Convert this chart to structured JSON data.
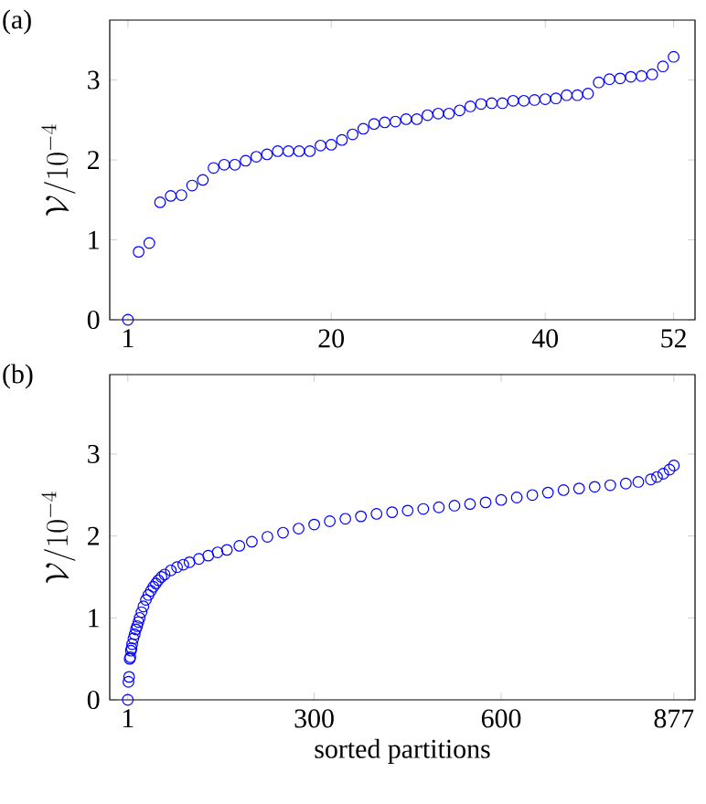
{
  "chart_data": [
    {
      "type": "scatter",
      "title": "(a)",
      "ylabel": "\\mathcal{V}/10^{-4}",
      "marker": "circle",
      "color": "#0000ff",
      "x": [
        1,
        2,
        3,
        4,
        5,
        6,
        7,
        8,
        9,
        10,
        11,
        12,
        13,
        14,
        15,
        16,
        17,
        18,
        19,
        20,
        21,
        22,
        23,
        24,
        25,
        26,
        27,
        28,
        29,
        30,
        31,
        32,
        33,
        34,
        35,
        36,
        37,
        38,
        39,
        40,
        41,
        42,
        43,
        44,
        45,
        46,
        47,
        48,
        49,
        50,
        51,
        52
      ],
      "values": [
        0,
        0.85,
        0.96,
        1.47,
        1.55,
        1.56,
        1.68,
        1.75,
        1.9,
        1.94,
        1.94,
        1.99,
        2.04,
        2.07,
        2.11,
        2.11,
        2.11,
        2.11,
        2.18,
        2.19,
        2.25,
        2.32,
        2.39,
        2.45,
        2.47,
        2.48,
        2.51,
        2.51,
        2.56,
        2.58,
        2.58,
        2.62,
        2.67,
        2.7,
        2.71,
        2.71,
        2.74,
        2.74,
        2.75,
        2.76,
        2.77,
        2.81,
        2.81,
        2.83,
        2.97,
        3.01,
        3.02,
        3.04,
        3.05,
        3.07,
        3.17,
        3.29
      ],
      "xlim": [
        -0.7,
        54
      ],
      "ylim": [
        0,
        3.75
      ],
      "xticks": [
        1,
        20,
        40,
        52
      ],
      "yticks": [
        0,
        1,
        2,
        3
      ]
    },
    {
      "type": "scatter",
      "title": "(b)",
      "ylabel": "\\mathcal{V}/10^{-4}",
      "xlabel": "sorted partitions",
      "marker": "circle",
      "color": "#0000ff",
      "x": [
        1,
        2,
        3,
        4,
        5,
        6,
        7,
        8,
        10,
        12,
        14,
        16,
        18,
        20,
        23,
        26,
        30,
        34,
        38,
        42,
        46,
        50,
        55,
        60,
        70,
        80,
        90,
        100,
        115,
        130,
        145,
        160,
        180,
        200,
        225,
        250,
        275,
        300,
        325,
        350,
        375,
        400,
        425,
        450,
        475,
        500,
        525,
        550,
        575,
        600,
        625,
        650,
        675,
        700,
        725,
        750,
        775,
        800,
        820,
        840,
        850,
        860,
        870,
        877
      ],
      "values": [
        0,
        0.22,
        0.28,
        0.5,
        0.52,
        0.6,
        0.63,
        0.68,
        0.75,
        0.8,
        0.86,
        0.9,
        0.95,
        1.0,
        1.07,
        1.14,
        1.22,
        1.28,
        1.33,
        1.38,
        1.42,
        1.46,
        1.5,
        1.53,
        1.58,
        1.62,
        1.65,
        1.68,
        1.72,
        1.76,
        1.8,
        1.83,
        1.88,
        1.93,
        1.99,
        2.04,
        2.09,
        2.14,
        2.18,
        2.21,
        2.24,
        2.27,
        2.29,
        2.31,
        2.33,
        2.35,
        2.37,
        2.39,
        2.41,
        2.44,
        2.47,
        2.5,
        2.53,
        2.56,
        2.58,
        2.6,
        2.62,
        2.64,
        2.66,
        2.69,
        2.72,
        2.76,
        2.81,
        2.86
      ],
      "xlim": [
        -28,
        911
      ],
      "ylim": [
        0,
        3.97
      ],
      "xticks": [
        1,
        300,
        600,
        877
      ],
      "yticks": [
        0,
        1,
        2,
        3
      ]
    }
  ]
}
